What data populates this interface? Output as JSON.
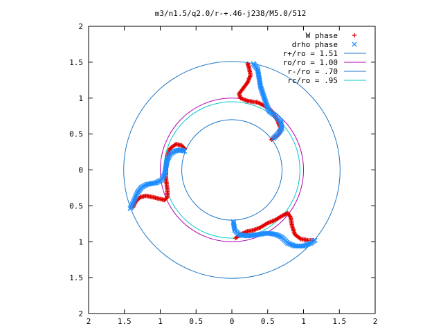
{
  "chart_data": {
    "type": "scatter",
    "title": "m3/n1.5/q2.0/r-+.46-j238/M5.0/512",
    "xlim": [
      -2,
      2
    ],
    "ylim": [
      -2,
      2
    ],
    "x_tick_labels": [
      "2",
      "1.5",
      "1",
      "0.5",
      "0",
      "0.5",
      "1",
      "1.5",
      "2"
    ],
    "y_tick_labels": [
      "2",
      "1.5",
      "1",
      "0.5",
      "0",
      "0.5",
      "1",
      "1.5",
      "2"
    ],
    "grid": false,
    "legend_position": "top-right",
    "circles": [
      {
        "name": "r+/ro = 1.51",
        "radius": 1.51,
        "color": "#1f77c8"
      },
      {
        "name": "ro/ro = 1.00",
        "radius": 1.0,
        "color": "#b000b0"
      },
      {
        "name": "r-/ro = .70",
        "radius": 0.7,
        "color": "#1f77c8"
      },
      {
        "name": "rc/ro = .95",
        "radius": 0.95,
        "color": "#00c8c8"
      }
    ],
    "series": [
      {
        "name": "W phase",
        "marker": "+",
        "color": "#e00000",
        "points": [
          [
            -1.38,
            -0.52
          ],
          [
            -1.34,
            -0.44
          ],
          [
            -1.28,
            -0.38
          ],
          [
            -1.2,
            -0.36
          ],
          [
            -1.1,
            -0.38
          ],
          [
            -1.02,
            -0.4
          ],
          [
            -0.94,
            -0.42
          ],
          [
            -0.9,
            -0.38
          ],
          [
            -0.9,
            -0.28
          ],
          [
            -0.92,
            -0.12
          ],
          [
            -0.92,
            0.04
          ],
          [
            -0.9,
            0.2
          ],
          [
            -0.86,
            0.3
          ],
          [
            -0.78,
            0.36
          ],
          [
            -0.7,
            0.34
          ],
          [
            -0.66,
            0.3
          ],
          [
            0.55,
            0.42
          ],
          [
            0.6,
            0.46
          ],
          [
            0.66,
            0.5
          ],
          [
            0.68,
            0.58
          ],
          [
            0.62,
            0.72
          ],
          [
            0.54,
            0.84
          ],
          [
            0.44,
            0.9
          ],
          [
            0.36,
            0.94
          ],
          [
            0.22,
            0.96
          ],
          [
            0.12,
            1.0
          ],
          [
            0.1,
            1.06
          ],
          [
            0.16,
            1.14
          ],
          [
            0.22,
            1.22
          ],
          [
            0.26,
            1.32
          ],
          [
            0.24,
            1.42
          ],
          [
            0.22,
            1.48
          ],
          [
            0.05,
            -0.95
          ],
          [
            0.12,
            -0.9
          ],
          [
            0.2,
            -0.86
          ],
          [
            0.3,
            -0.84
          ],
          [
            0.4,
            -0.8
          ],
          [
            0.5,
            -0.74
          ],
          [
            0.6,
            -0.7
          ],
          [
            0.7,
            -0.64
          ],
          [
            0.78,
            -0.6
          ],
          [
            0.82,
            -0.66
          ],
          [
            0.84,
            -0.78
          ],
          [
            0.88,
            -0.9
          ],
          [
            0.96,
            -0.96
          ],
          [
            1.06,
            -0.98
          ],
          [
            1.14,
            -0.98
          ]
        ]
      },
      {
        "name": "drho phase",
        "marker": "x",
        "color": "#1e8cff",
        "points": [
          [
            -1.42,
            -0.54
          ],
          [
            -1.38,
            -0.46
          ],
          [
            -1.32,
            -0.32
          ],
          [
            -1.26,
            -0.24
          ],
          [
            -1.18,
            -0.2
          ],
          [
            -1.06,
            -0.18
          ],
          [
            -0.98,
            -0.14
          ],
          [
            -0.94,
            -0.06
          ],
          [
            -0.92,
            0.04
          ],
          [
            -0.9,
            0.14
          ],
          [
            -0.86,
            0.22
          ],
          [
            -0.8,
            0.26
          ],
          [
            -0.72,
            0.28
          ],
          [
            -0.66,
            0.26
          ],
          [
            0.58,
            0.44
          ],
          [
            0.64,
            0.5
          ],
          [
            0.7,
            0.58
          ],
          [
            0.68,
            0.68
          ],
          [
            0.6,
            0.76
          ],
          [
            0.52,
            0.82
          ],
          [
            0.48,
            0.92
          ],
          [
            0.44,
            1.04
          ],
          [
            0.4,
            1.16
          ],
          [
            0.38,
            1.28
          ],
          [
            0.36,
            1.4
          ],
          [
            0.3,
            1.48
          ],
          [
            0.02,
            -0.72
          ],
          [
            0.04,
            -0.84
          ],
          [
            0.1,
            -0.9
          ],
          [
            0.22,
            -0.92
          ],
          [
            0.36,
            -0.9
          ],
          [
            0.5,
            -0.88
          ],
          [
            0.62,
            -0.9
          ],
          [
            0.7,
            -0.94
          ],
          [
            0.78,
            -1.02
          ],
          [
            0.88,
            -1.06
          ],
          [
            1.0,
            -1.06
          ],
          [
            1.1,
            -1.02
          ],
          [
            1.16,
            -0.98
          ]
        ]
      }
    ]
  }
}
